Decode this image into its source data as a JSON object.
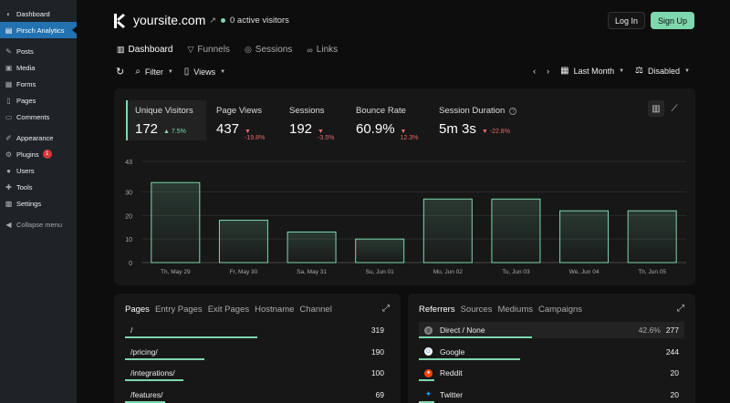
{
  "wp_menu": {
    "items": [
      {
        "label": "Dashboard",
        "icon": "gauge-icon",
        "glyph": "◐"
      },
      {
        "label": "Pirsch Analytics",
        "icon": "chart-icon",
        "glyph": "▤",
        "active": true
      },
      {
        "label": "Posts",
        "icon": "pin-icon",
        "glyph": "✎"
      },
      {
        "label": "Media",
        "icon": "media-icon",
        "glyph": "▣"
      },
      {
        "label": "Forms",
        "icon": "form-icon",
        "glyph": "▦"
      },
      {
        "label": "Pages",
        "icon": "page-icon",
        "glyph": "▯"
      },
      {
        "label": "Comments",
        "icon": "comment-icon",
        "glyph": "▭"
      },
      {
        "label": "Appearance",
        "icon": "brush-icon",
        "glyph": "✐"
      },
      {
        "label": "Plugins",
        "icon": "plug-icon",
        "glyph": "⚙",
        "badge": "1"
      },
      {
        "label": "Users",
        "icon": "user-icon",
        "glyph": "●"
      },
      {
        "label": "Tools",
        "icon": "wrench-icon",
        "glyph": "✚"
      },
      {
        "label": "Settings",
        "icon": "settings-icon",
        "glyph": "▩"
      },
      {
        "label": "Collapse menu",
        "icon": "collapse-icon",
        "glyph": "◀"
      }
    ]
  },
  "header": {
    "site": "yoursite.com",
    "active_visitors": "0 active visitors",
    "login": "Log In",
    "signup": "Sign Up"
  },
  "tabs": [
    {
      "label": "Dashboard",
      "icon": "bar-chart-icon",
      "glyph": "▥"
    },
    {
      "label": "Funnels",
      "icon": "funnel-icon",
      "glyph": "▽"
    },
    {
      "label": "Sessions",
      "icon": "compass-icon",
      "glyph": "◎"
    },
    {
      "label": "Links",
      "icon": "link-icon",
      "glyph": "∞"
    }
  ],
  "toolbar": {
    "filter": "Filter",
    "views": "Views",
    "period": "Last Month",
    "comparison": "Disabled"
  },
  "metrics": [
    {
      "label": "Unique Visitors",
      "value": "172",
      "delta": "7.5%",
      "trend": "up"
    },
    {
      "label": "Page Views",
      "value": "437",
      "delta": "-19.8%",
      "trend": "down"
    },
    {
      "label": "Sessions",
      "value": "192",
      "delta": "-3.5%",
      "trend": "down"
    },
    {
      "label": "Bounce Rate",
      "value": "60.9%",
      "delta": "12.3%",
      "trend": "down"
    },
    {
      "label": "Session Duration",
      "value": "5m 3s",
      "delta": "-22.8%",
      "trend": "down"
    }
  ],
  "chart_data": {
    "type": "bar",
    "categories": [
      "Th, May 29",
      "Fr, May 30",
      "Sa, May 31",
      "Su, Jun 01",
      "Mo, Jun 02",
      "Tu, Jun 03",
      "We, Jun 04",
      "Th, Jun 05"
    ],
    "values": [
      34,
      18,
      13,
      10,
      27,
      27,
      22,
      22
    ],
    "yticks": [
      0,
      10,
      20,
      30,
      43
    ],
    "ylim": [
      0,
      43
    ],
    "grid": true,
    "bar_color": "#7ed7ae"
  },
  "pages_card": {
    "tabs": [
      "Pages",
      "Entry Pages",
      "Exit Pages",
      "Hostname",
      "Channel"
    ],
    "rows": [
      {
        "label": "/",
        "value": "319",
        "share": 0.5
      },
      {
        "label": "/pricing/",
        "value": "190",
        "share": 0.3
      },
      {
        "label": "/integrations/",
        "value": "100",
        "share": 0.22
      },
      {
        "label": "/features/",
        "value": "69",
        "share": 0.15
      }
    ]
  },
  "referrers_card": {
    "tabs": [
      "Referrers",
      "Sources",
      "Mediums",
      "Campaigns"
    ],
    "rows": [
      {
        "label": "Direct / None",
        "pct": "42.6%",
        "value": "277",
        "icon": "globe-icon",
        "color": "#888888",
        "share": 0.426
      },
      {
        "label": "Google",
        "pct": "",
        "value": "244",
        "icon": "google-icon",
        "color": "#ffffff",
        "share": 0.38
      },
      {
        "label": "Reddit",
        "pct": "",
        "value": "20",
        "icon": "reddit-icon",
        "color": "#ff4500",
        "share": 0.06
      },
      {
        "label": "Twitter",
        "pct": "",
        "value": "20",
        "icon": "twitter-icon",
        "color": "#1d9bf0",
        "share": 0.06
      }
    ]
  }
}
